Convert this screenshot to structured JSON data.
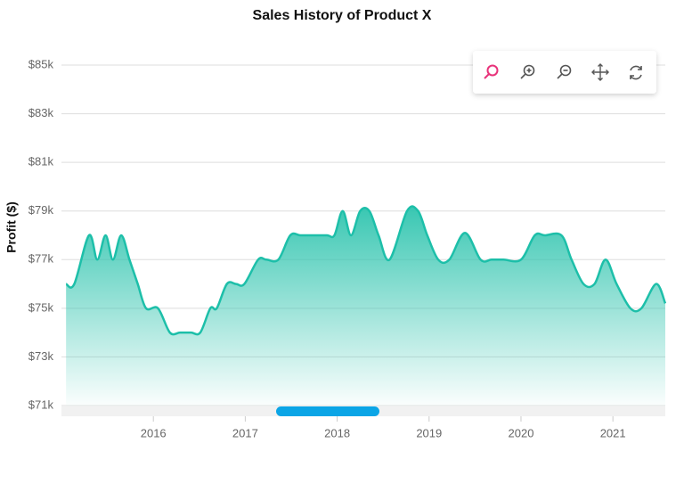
{
  "chart_data": {
    "type": "area",
    "smooth": true,
    "title": "Sales History of Product X",
    "y_label": "Profit ($)",
    "x": [
      2015.05,
      2015.14,
      2015.3,
      2015.39,
      2015.48,
      2015.56,
      2015.65,
      2015.74,
      2015.83,
      2015.92,
      2016.05,
      2016.18,
      2016.29,
      2016.41,
      2016.51,
      2016.62,
      2016.69,
      2016.8,
      2016.9,
      2016.99,
      2017.14,
      2017.23,
      2017.36,
      2017.49,
      2017.6,
      2017.74,
      2017.89,
      2017.97,
      2018.06,
      2018.15,
      2018.25,
      2018.35,
      2018.45,
      2018.57,
      2018.76,
      2018.88,
      2018.98,
      2019.1,
      2019.22,
      2019.39,
      2019.56,
      2019.68,
      2019.81,
      2020.0,
      2020.15,
      2020.26,
      2020.44,
      2020.55,
      2020.68,
      2020.8,
      2020.92,
      2021.04,
      2021.19,
      2021.31,
      2021.47,
      2021.57
    ],
    "values": [
      76000,
      76000,
      78000,
      77000,
      78000,
      77000,
      78000,
      77000,
      76000,
      75000,
      75000,
      74000,
      74000,
      74000,
      74000,
      75000,
      75000,
      76000,
      76000,
      76000,
      77000,
      77000,
      77000,
      78000,
      78000,
      78000,
      78000,
      78000,
      79000,
      78000,
      79000,
      79000,
      78000,
      77000,
      79000,
      79000,
      78000,
      77000,
      77000,
      78100,
      77000,
      77000,
      77000,
      77000,
      78000,
      78000,
      78000,
      77000,
      76000,
      76000,
      77000,
      76000,
      75000,
      75000,
      76000,
      75200
    ],
    "color": "#1dbfa9",
    "xlim": [
      2015.0,
      2021.57
    ],
    "xticks": [
      2016,
      2017,
      2018,
      2019,
      2020,
      2021
    ],
    "ylim": [
      71000,
      85000
    ],
    "yticks": [
      {
        "value": 71000,
        "label": "$71k"
      },
      {
        "value": 73000,
        "label": "$73k"
      },
      {
        "value": 75000,
        "label": "$75k"
      },
      {
        "value": 77000,
        "label": "$77k"
      },
      {
        "value": 79000,
        "label": "$79k"
      },
      {
        "value": 81000,
        "label": "$81k"
      },
      {
        "value": 83000,
        "label": "$83k"
      },
      {
        "value": 85000,
        "label": "$85k"
      }
    ],
    "grid": true
  }
}
